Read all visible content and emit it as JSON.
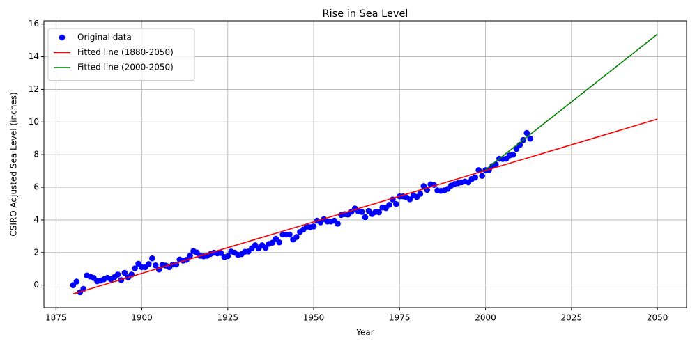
{
  "chart_data": {
    "type": "scatter",
    "title": "Rise in Sea Level",
    "x_label": "Year",
    "y_label": "CSIRO Adjusted Sea Level (inches)",
    "xlim": [
      1871.5,
      2058.5
    ],
    "ylim": [
      -1.38,
      16.2
    ],
    "xticks": [
      1875,
      1900,
      1925,
      1950,
      1975,
      2000,
      2025,
      2050
    ],
    "yticks": [
      0,
      2,
      4,
      6,
      8,
      10,
      12,
      14,
      16
    ],
    "grid": true,
    "legend": "upper-left",
    "series": [
      {
        "name": "Original data",
        "mark": "scatter",
        "color": "#0000ff",
        "x": [
          1880,
          1881,
          1882,
          1883,
          1884,
          1885,
          1886,
          1887,
          1888,
          1889,
          1890,
          1891,
          1892,
          1893,
          1894,
          1895,
          1896,
          1897,
          1898,
          1899,
          1900,
          1901,
          1902,
          1903,
          1904,
          1905,
          1906,
          1907,
          1908,
          1909,
          1910,
          1911,
          1912,
          1913,
          1914,
          1915,
          1916,
          1917,
          1918,
          1919,
          1920,
          1921,
          1922,
          1923,
          1924,
          1925,
          1926,
          1927,
          1928,
          1929,
          1930,
          1931,
          1932,
          1933,
          1934,
          1935,
          1936,
          1937,
          1938,
          1939,
          1940,
          1941,
          1942,
          1943,
          1944,
          1945,
          1946,
          1947,
          1948,
          1949,
          1950,
          1951,
          1952,
          1953,
          1954,
          1955,
          1956,
          1957,
          1958,
          1959,
          1960,
          1961,
          1962,
          1963,
          1964,
          1965,
          1966,
          1967,
          1968,
          1969,
          1970,
          1971,
          1972,
          1973,
          1974,
          1975,
          1976,
          1977,
          1978,
          1979,
          1980,
          1981,
          1982,
          1983,
          1984,
          1985,
          1986,
          1987,
          1988,
          1989,
          1990,
          1991,
          1992,
          1993,
          1994,
          1995,
          1996,
          1997,
          1998,
          1999,
          2000,
          2001,
          2002,
          2003,
          2004,
          2005,
          2006,
          2007,
          2008,
          2009,
          2010,
          2011,
          2012,
          2013
        ],
        "values": [
          0,
          0.22,
          -0.44,
          -0.23,
          0.59,
          0.53,
          0.44,
          0.24,
          0.28,
          0.36,
          0.45,
          0.36,
          0.49,
          0.65,
          0.31,
          0.75,
          0.47,
          0.65,
          1.03,
          1.31,
          1.1,
          1.1,
          1.29,
          1.64,
          1.21,
          0.96,
          1.24,
          1.2,
          1.1,
          1.26,
          1.26,
          1.57,
          1.5,
          1.55,
          1.8,
          2.09,
          2.0,
          1.8,
          1.77,
          1.8,
          1.91,
          1.99,
          1.95,
          1.97,
          1.72,
          1.78,
          2.06,
          1.99,
          1.86,
          1.9,
          2.05,
          2.06,
          2.26,
          2.44,
          2.26,
          2.44,
          2.29,
          2.53,
          2.6,
          2.84,
          2.62,
          3.1,
          3.1,
          3.1,
          2.8,
          2.95,
          3.26,
          3.41,
          3.59,
          3.55,
          3.6,
          3.95,
          3.85,
          4.05,
          3.9,
          3.9,
          3.95,
          3.77,
          4.3,
          4.35,
          4.33,
          4.5,
          4.7,
          4.52,
          4.49,
          4.17,
          4.55,
          4.36,
          4.49,
          4.47,
          4.76,
          4.72,
          4.92,
          5.25,
          4.97,
          5.44,
          5.44,
          5.37,
          5.26,
          5.5,
          5.4,
          5.6,
          6.07,
          5.84,
          6.18,
          6.14,
          5.8,
          5.78,
          5.8,
          5.9,
          6.1,
          6.2,
          6.25,
          6.3,
          6.35,
          6.3,
          6.5,
          6.6,
          7.05,
          6.7,
          7.05,
          7.06,
          7.3,
          7.4,
          7.75,
          7.73,
          7.75,
          7.95,
          8.0,
          8.35,
          8.6,
          8.9,
          9.33,
          8.98
        ]
      },
      {
        "name": "Fitted line (1880-2050)",
        "mark": "line",
        "color": "#ff0000",
        "x": [
          1880,
          2050
        ],
        "values": [
          -0.54,
          10.18
        ]
      },
      {
        "name": "Fitted line (2000-2050)",
        "mark": "line",
        "color": "#008000",
        "x": [
          2000,
          2050
        ],
        "values": [
          7.08,
          15.38
        ]
      }
    ]
  }
}
